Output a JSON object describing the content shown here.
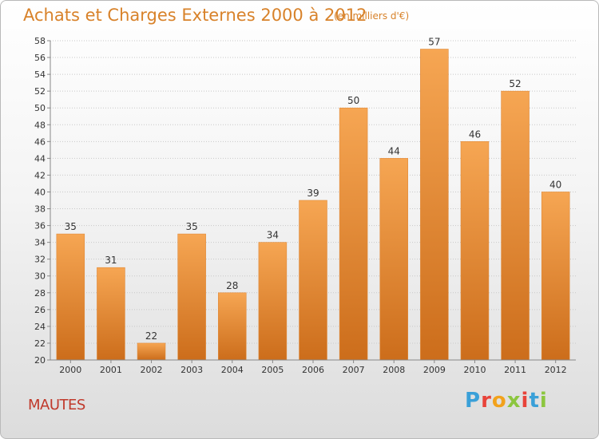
{
  "header": {
    "title": "Achats et Charges Externes 2000 à 2012",
    "subtitle": "(en milliers d'€)"
  },
  "footer": {
    "place": "MAUTES",
    "logo_text": "Proxiti",
    "logo_letters": [
      {
        "ch": "P",
        "color": "#3aa0d8"
      },
      {
        "ch": "r",
        "color": "#e8433a"
      },
      {
        "ch": "o",
        "color": "#f2a21c"
      },
      {
        "ch": "x",
        "color": "#8cc63f"
      },
      {
        "ch": "i",
        "color": "#e8433a"
      },
      {
        "ch": "t",
        "color": "#3aa0d8"
      },
      {
        "ch": "i",
        "color": "#8cc63f"
      }
    ]
  },
  "colors": {
    "bar_top": "#f6a653",
    "bar_bottom": "#cc6d1b",
    "title": "#d8822a",
    "place": "#c0392b"
  },
  "chart_data": {
    "type": "bar",
    "title": "Achats et Charges Externes 2000 à 2012",
    "subtitle": "(en milliers d'€)",
    "categories": [
      "2000",
      "2001",
      "2002",
      "2003",
      "2004",
      "2005",
      "2006",
      "2007",
      "2008",
      "2009",
      "2010",
      "2011",
      "2012"
    ],
    "values": [
      35,
      31,
      22,
      35,
      28,
      34,
      39,
      50,
      44,
      57,
      46,
      52,
      40
    ],
    "ylim": [
      20,
      58
    ],
    "yticks": [
      20,
      22,
      24,
      26,
      28,
      30,
      32,
      34,
      36,
      38,
      40,
      42,
      44,
      46,
      48,
      50,
      52,
      54,
      56,
      58
    ],
    "grid": true,
    "xlabel": "",
    "ylabel": ""
  }
}
